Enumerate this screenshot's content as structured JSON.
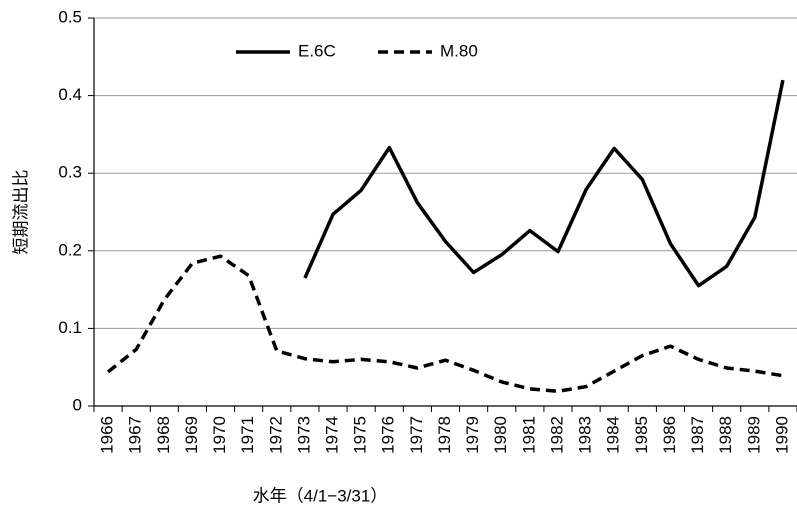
{
  "chart_data": {
    "type": "line",
    "x_label": "水年（4/1−3/31）",
    "y_label": "短期流出比",
    "categories": [
      "1966",
      "1967",
      "1968",
      "1969",
      "1970",
      "1971",
      "1972",
      "1973",
      "1974",
      "1975",
      "1976",
      "1977",
      "1978",
      "1979",
      "1980",
      "1981",
      "1982",
      "1983",
      "1984",
      "1985",
      "1986",
      "1987",
      "1988",
      "1989",
      "1990"
    ],
    "series": [
      {
        "name": "E.6C",
        "color": "#000000",
        "line_style": "solid",
        "values": [
          null,
          null,
          null,
          null,
          null,
          null,
          null,
          0.165,
          0.247,
          0.278,
          0.333,
          0.262,
          0.212,
          0.172,
          0.195,
          0.226,
          0.199,
          0.279,
          0.332,
          0.292,
          0.209,
          0.155,
          0.18,
          0.243,
          0.42
        ]
      },
      {
        "name": "M.80",
        "color": "#000000",
        "line_style": "dashed",
        "values": [
          0.044,
          0.073,
          0.137,
          0.184,
          0.193,
          0.168,
          0.071,
          0.061,
          0.057,
          0.06,
          0.057,
          0.049,
          0.059,
          0.046,
          0.031,
          0.022,
          0.019,
          0.025,
          0.045,
          0.065,
          0.077,
          0.06,
          0.049,
          0.045,
          0.039
        ]
      }
    ],
    "ylim": [
      0,
      0.5
    ],
    "yticks": [
      0,
      0.1,
      0.2,
      0.3,
      0.4,
      0.5
    ],
    "grid": true,
    "legend": "top"
  }
}
